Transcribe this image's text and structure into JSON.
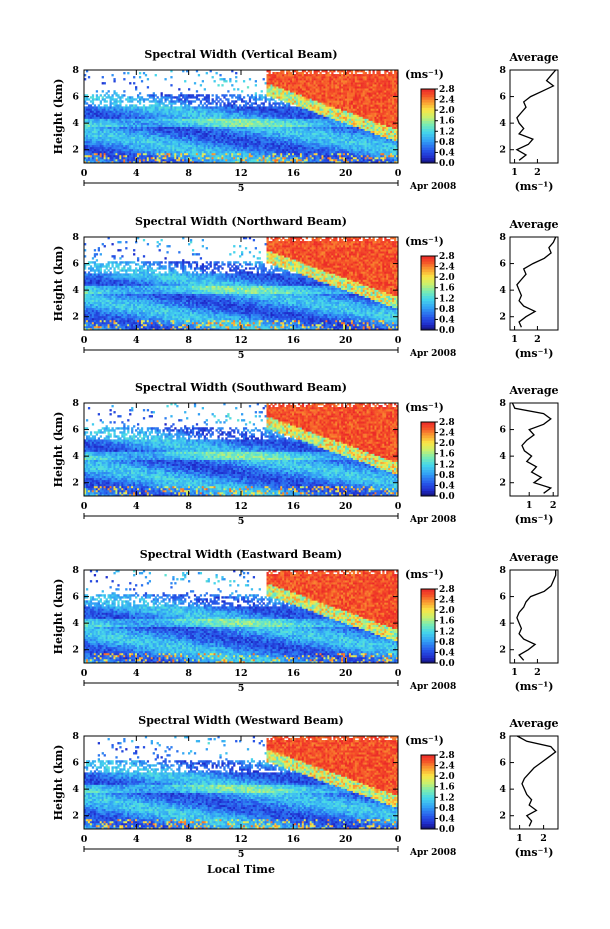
{
  "chart_data": [
    {
      "type": "heatmap",
      "title": "Spectral Width (Vertical Beam)",
      "ylabel": "Height (km)",
      "x_ticks": [
        "0",
        "4",
        "8",
        "12",
        "16",
        "20",
        "0"
      ],
      "y_ticks": [
        "2",
        "4",
        "6",
        "8"
      ],
      "date_day": "5",
      "date_label": "Apr 2008",
      "xlim": [
        0,
        24
      ],
      "ylim": [
        1,
        8
      ],
      "colorbar": {
        "unit": "(ms⁻¹)",
        "ticks": [
          "0.0",
          "0.4",
          "0.8",
          "1.2",
          "1.6",
          "2.0",
          "2.4",
          "2.8"
        ],
        "range": [
          0,
          2.8
        ]
      },
      "average": {
        "title": "Average",
        "xlabel": "(ms⁻¹)",
        "x_ticks": [
          "1",
          "2"
        ],
        "xlim": [
          0.8,
          2.9
        ],
        "tick_values": [
          1,
          2
        ],
        "y_ticks": [
          "2",
          "4",
          "6",
          "8"
        ],
        "heights": [
          1.2,
          1.6,
          2.0,
          2.4,
          2.8,
          3.2,
          3.6,
          4.0,
          4.4,
          4.8,
          5.2,
          5.6,
          6.0,
          6.4,
          6.8,
          7.2,
          7.6,
          8.0
        ],
        "values": [
          1.2,
          1.5,
          1.1,
          1.6,
          1.8,
          1.2,
          1.4,
          1.2,
          1.1,
          1.3,
          1.5,
          1.4,
          1.7,
          2.2,
          2.7,
          2.4,
          2.6,
          2.8
        ]
      }
    },
    {
      "type": "heatmap",
      "title": "Spectral Width (Northward Beam)",
      "ylabel": "Height (km)",
      "x_ticks": [
        "0",
        "4",
        "8",
        "12",
        "16",
        "20",
        "0"
      ],
      "y_ticks": [
        "2",
        "4",
        "6",
        "8"
      ],
      "date_day": "5",
      "date_label": "Apr 2008",
      "xlim": [
        0,
        24
      ],
      "ylim": [
        1,
        8
      ],
      "colorbar": {
        "unit": "(ms⁻¹)",
        "ticks": [
          "0.0",
          "0.4",
          "0.8",
          "1.2",
          "1.6",
          "2.0",
          "2.4",
          "2.8"
        ],
        "range": [
          0,
          2.8
        ]
      },
      "average": {
        "title": "Average",
        "xlabel": "(ms⁻¹)",
        "x_ticks": [
          "1",
          "2"
        ],
        "xlim": [
          0.8,
          2.9
        ],
        "tick_values": [
          1,
          2
        ],
        "y_ticks": [
          "2",
          "4",
          "6",
          "8"
        ],
        "heights": [
          1.2,
          1.6,
          2.0,
          2.4,
          2.8,
          3.2,
          3.6,
          4.0,
          4.4,
          4.8,
          5.2,
          5.6,
          6.0,
          6.4,
          6.8,
          7.2,
          7.6,
          8.0
        ],
        "values": [
          1.3,
          1.2,
          1.5,
          1.9,
          1.4,
          1.2,
          1.3,
          1.2,
          1.1,
          1.3,
          1.5,
          1.4,
          1.8,
          2.3,
          2.6,
          2.5,
          2.7,
          2.8
        ]
      }
    },
    {
      "type": "heatmap",
      "title": "Spectral Width (Southward Beam)",
      "ylabel": "Height (km)",
      "x_ticks": [
        "0",
        "4",
        "8",
        "12",
        "16",
        "20",
        "0"
      ],
      "y_ticks": [
        "2",
        "4",
        "6",
        "8"
      ],
      "date_day": "5",
      "date_label": "Apr 2008",
      "xlim": [
        0,
        24
      ],
      "ylim": [
        1,
        8
      ],
      "colorbar": {
        "unit": "(ms⁻¹)",
        "ticks": [
          "0.0",
          "0.4",
          "0.8",
          "1.2",
          "1.6",
          "2.0",
          "2.4",
          "2.8"
        ],
        "range": [
          0,
          2.8
        ]
      },
      "average": {
        "title": "Average",
        "xlabel": "(ms⁻¹)",
        "x_ticks": [
          "1",
          "2"
        ],
        "xlim": [
          0.2,
          2.2
        ],
        "tick_values": [
          1,
          2
        ],
        "y_ticks": [
          "2",
          "4",
          "6",
          "8"
        ],
        "heights": [
          1.2,
          1.6,
          2.0,
          2.4,
          2.8,
          3.2,
          3.6,
          4.0,
          4.4,
          4.8,
          5.2,
          5.6,
          6.0,
          6.4,
          6.8,
          7.2,
          7.6,
          8.0
        ],
        "values": [
          1.6,
          1.9,
          1.2,
          1.5,
          1.1,
          1.3,
          0.9,
          1.1,
          0.8,
          0.7,
          0.9,
          1.2,
          1.0,
          1.6,
          1.9,
          1.6,
          0.4,
          0.3
        ]
      }
    },
    {
      "type": "heatmap",
      "title": "Spectral Width (Eastward Beam)",
      "ylabel": "Height (km)",
      "x_ticks": [
        "0",
        "4",
        "8",
        "12",
        "16",
        "20",
        "0"
      ],
      "y_ticks": [
        "2",
        "4",
        "6",
        "8"
      ],
      "date_day": "5",
      "date_label": "Apr 2008",
      "xlim": [
        0,
        24
      ],
      "ylim": [
        1,
        8
      ],
      "colorbar": {
        "unit": "(ms⁻¹)",
        "ticks": [
          "0.0",
          "0.4",
          "0.8",
          "1.2",
          "1.6",
          "2.0",
          "2.4",
          "2.8"
        ],
        "range": [
          0,
          2.8
        ]
      },
      "average": {
        "title": "Average",
        "xlabel": "(ms⁻¹)",
        "x_ticks": [
          "1",
          "2"
        ],
        "xlim": [
          0.8,
          2.9
        ],
        "tick_values": [
          1,
          2
        ],
        "y_ticks": [
          "2",
          "4",
          "6",
          "8"
        ],
        "heights": [
          1.2,
          1.6,
          2.0,
          2.4,
          2.8,
          3.2,
          3.6,
          4.0,
          4.4,
          4.8,
          5.2,
          5.6,
          6.0,
          6.4,
          6.8,
          7.2,
          7.6,
          8.0
        ],
        "values": [
          1.4,
          1.2,
          1.6,
          1.9,
          1.4,
          1.2,
          1.3,
          1.2,
          1.1,
          1.2,
          1.4,
          1.5,
          1.7,
          2.3,
          2.6,
          2.7,
          2.8,
          2.8
        ]
      }
    },
    {
      "type": "heatmap",
      "title": "Spectral Width (Westward Beam)",
      "ylabel": "Height (km)",
      "x_ticks": [
        "0",
        "4",
        "8",
        "12",
        "16",
        "20",
        "0"
      ],
      "y_ticks": [
        "2",
        "4",
        "6",
        "8"
      ],
      "date_day": "5",
      "date_label": "Apr 2008",
      "xlabel": "Local Time",
      "xlim": [
        0,
        24
      ],
      "ylim": [
        1,
        8
      ],
      "colorbar": {
        "unit": "(ms⁻¹)",
        "ticks": [
          "0.0",
          "0.4",
          "0.8",
          "1.2",
          "1.6",
          "2.0",
          "2.4",
          "2.8"
        ],
        "range": [
          0,
          2.8
        ]
      },
      "average": {
        "title": "Average",
        "xlabel": "(ms⁻¹)",
        "x_ticks": [
          "1",
          "2"
        ],
        "xlim": [
          0.6,
          2.6
        ],
        "tick_values": [
          1,
          2
        ],
        "y_ticks": [
          "2",
          "4",
          "6",
          "8"
        ],
        "heights": [
          1.2,
          1.6,
          2.0,
          2.4,
          2.8,
          3.2,
          3.6,
          4.0,
          4.4,
          4.8,
          5.2,
          5.6,
          6.0,
          6.4,
          6.8,
          7.2,
          7.6,
          8.0
        ],
        "values": [
          1.4,
          1.5,
          1.3,
          1.7,
          1.4,
          1.5,
          1.3,
          1.2,
          1.1,
          1.2,
          1.4,
          1.6,
          1.9,
          2.2,
          2.5,
          2.3,
          1.3,
          0.9
        ]
      }
    }
  ]
}
